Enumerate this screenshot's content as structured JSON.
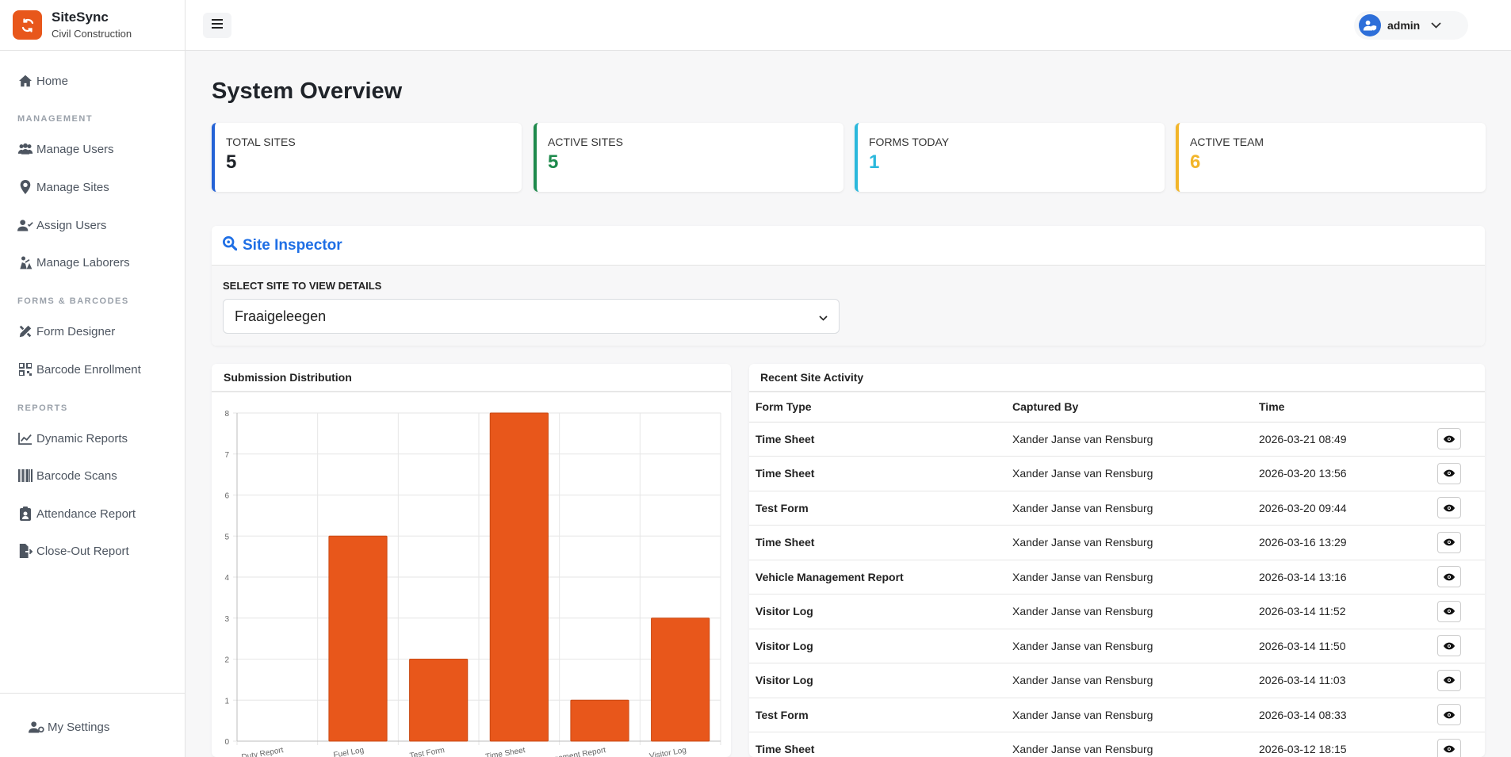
{
  "brand": {
    "name": "SiteSync",
    "subtitle": "Civil Construction"
  },
  "nav": {
    "home": "Home",
    "sections": {
      "management": "MANAGEMENT",
      "forms": "FORMS & BARCODES",
      "reports": "REPORTS"
    },
    "manage_users": "Manage Users",
    "manage_sites": "Manage Sites",
    "assign_users": "Assign Users",
    "manage_laborers": "Manage Laborers",
    "form_designer": "Form Designer",
    "barcode_enrollment": "Barcode Enrollment",
    "dynamic_reports": "Dynamic Reports",
    "barcode_scans": "Barcode Scans",
    "attendance_report": "Attendance Report",
    "closeout_report": "Close-Out Report",
    "my_settings": "My Settings"
  },
  "user": {
    "name": "admin"
  },
  "page": {
    "title": "System Overview"
  },
  "stats": [
    {
      "label": "TOTAL SITES",
      "value": "5",
      "color": "#2563d6"
    },
    {
      "label": "ACTIVE SITES",
      "value": "5",
      "color": "#1e8a4c"
    },
    {
      "label": "FORMS TODAY",
      "value": "1",
      "color": "#2bb8dc"
    },
    {
      "label": "ACTIVE TEAM",
      "value": "6",
      "color": "#f2b52a"
    }
  ],
  "inspector": {
    "title": "Site Inspector",
    "select_label": "SELECT SITE TO VIEW DETAILS",
    "selected_site": "Fraaigeleegen"
  },
  "chart_card": {
    "title": "Submission Distribution"
  },
  "chart_data": {
    "type": "bar",
    "categories": [
      "Duty Report",
      "Fuel Log",
      "Test Form",
      "Time Sheet",
      "Vehicle Management Report",
      "Visitor Log"
    ],
    "values": [
      0,
      5,
      2,
      8,
      1,
      3
    ],
    "ylim": [
      0,
      8
    ],
    "yticks": [
      0,
      1,
      2,
      3,
      4,
      5,
      6,
      7,
      8
    ],
    "color": "#e8571b",
    "grid": true
  },
  "activity": {
    "title": "Recent Site Activity",
    "columns": [
      "Form Type",
      "Captured By",
      "Time"
    ],
    "rows": [
      {
        "form": "Time Sheet",
        "by": "Xander Janse van Rensburg",
        "time": "2026-03-21 08:49"
      },
      {
        "form": "Time Sheet",
        "by": "Xander Janse van Rensburg",
        "time": "2026-03-20 13:56"
      },
      {
        "form": "Test Form",
        "by": "Xander Janse van Rensburg",
        "time": "2026-03-20 09:44"
      },
      {
        "form": "Time Sheet",
        "by": "Xander Janse van Rensburg",
        "time": "2026-03-16 13:29"
      },
      {
        "form": "Vehicle Management Report",
        "by": "Xander Janse van Rensburg",
        "time": "2026-03-14 13:16"
      },
      {
        "form": "Visitor Log",
        "by": "Xander Janse van Rensburg",
        "time": "2026-03-14 11:52"
      },
      {
        "form": "Visitor Log",
        "by": "Xander Janse van Rensburg",
        "time": "2026-03-14 11:50"
      },
      {
        "form": "Visitor Log",
        "by": "Xander Janse van Rensburg",
        "time": "2026-03-14 11:03"
      },
      {
        "form": "Test Form",
        "by": "Xander Janse van Rensburg",
        "time": "2026-03-14 08:33"
      },
      {
        "form": "Time Sheet",
        "by": "Xander Janse van Rensburg",
        "time": "2026-03-12 18:15"
      }
    ]
  }
}
